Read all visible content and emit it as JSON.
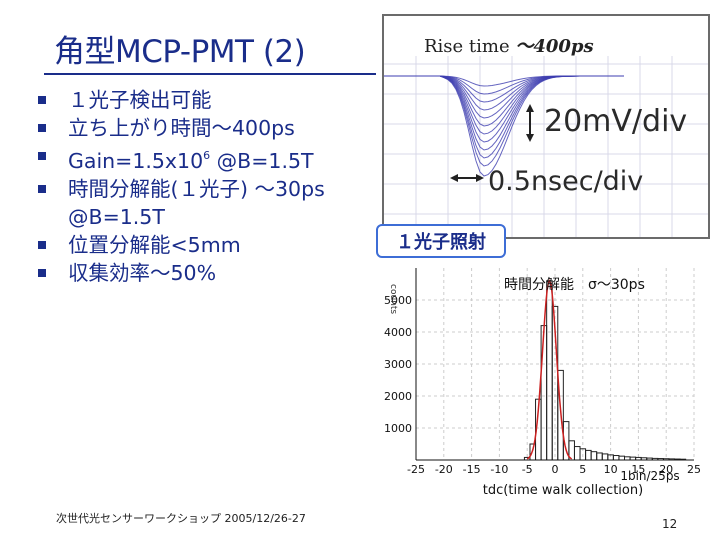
{
  "slide": {
    "title": "角型MCP-PMT (2)",
    "bullets": [
      {
        "text": "１光子検出可能"
      },
      {
        "text": "立ち上がり時間〜400ps"
      },
      {
        "pre": "Gain=1.5x10",
        "sup": "6",
        "post": " @B=1.5T"
      },
      {
        "text": "時間分解能(１光子) 〜30ps",
        "text2": "@B=1.5T"
      },
      {
        "text": "位置分解能<5mm"
      },
      {
        "text": "収集効率〜50%"
      }
    ],
    "footer": "次世代光センサーワークショップ 2005/12/26-27",
    "page_number": "12"
  },
  "scope": {
    "title_prefix": "Rise time ",
    "title_value": "〜400ps",
    "vertical_scale": "20mV/div",
    "horizontal_scale": "0.5nsec/div",
    "trace_color": "#3f3fb0"
  },
  "callout": {
    "label": "１光子照射",
    "resolution": "時間分解能　σ〜30ps"
  },
  "chart_data": {
    "type": "bar",
    "xlabel": "tdc(time walk collection)",
    "xunit": "1bin/25ps",
    "ylabel": "counts",
    "xlim": [
      -25,
      25
    ],
    "ylim": [
      0,
      6000
    ],
    "xticks": [
      -25,
      -20,
      -15,
      -10,
      -5,
      0,
      5,
      10,
      15,
      20,
      25
    ],
    "yticks": [
      1000,
      2000,
      3000,
      4000,
      5000
    ],
    "bins_x": [
      -5,
      -4,
      -3,
      -2,
      -1,
      0,
      1,
      2,
      3,
      4,
      5,
      6,
      7,
      8,
      9,
      10,
      11,
      12,
      13,
      14,
      15,
      16,
      17,
      18,
      19,
      20,
      21,
      22,
      23
    ],
    "bins_y": [
      80,
      500,
      1900,
      4200,
      5600,
      4800,
      2800,
      1200,
      600,
      420,
      350,
      300,
      260,
      220,
      190,
      160,
      140,
      120,
      100,
      90,
      80,
      70,
      60,
      50,
      45,
      40,
      35,
      30,
      25
    ],
    "fit_color": "#cc2020",
    "bar_color": "#222222"
  }
}
